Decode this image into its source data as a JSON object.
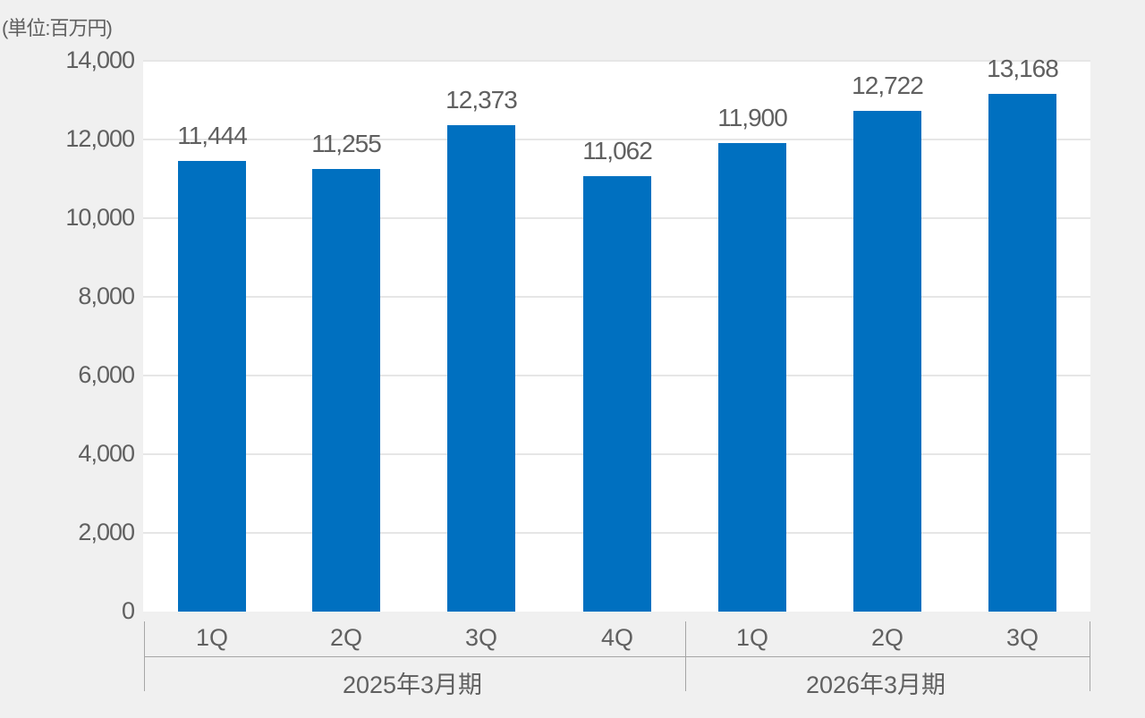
{
  "chart_data": {
    "type": "bar",
    "unit_label": "(単位:百万円)",
    "categories": [
      "1Q",
      "2Q",
      "3Q",
      "4Q",
      "1Q",
      "2Q",
      "3Q"
    ],
    "groups": [
      {
        "label": "2025年3月期",
        "categories": [
          "1Q",
          "2Q",
          "3Q",
          "4Q"
        ]
      },
      {
        "label": "2026年3月期",
        "categories": [
          "1Q",
          "2Q",
          "3Q"
        ]
      }
    ],
    "values": [
      11444,
      11255,
      12373,
      11062,
      11900,
      12722,
      13168
    ],
    "value_labels": [
      "11,444",
      "11,255",
      "12,373",
      "11,062",
      "11,900",
      "12,722",
      "13,168"
    ],
    "yticks": [
      "0",
      "2,000",
      "4,000",
      "6,000",
      "8,000",
      "10,000",
      "12,000",
      "14,000"
    ],
    "ylim": [
      0,
      14000
    ],
    "grid": true,
    "bar_color": "#0070c0",
    "title": "",
    "xlabel": "",
    "ylabel": "百万円"
  }
}
